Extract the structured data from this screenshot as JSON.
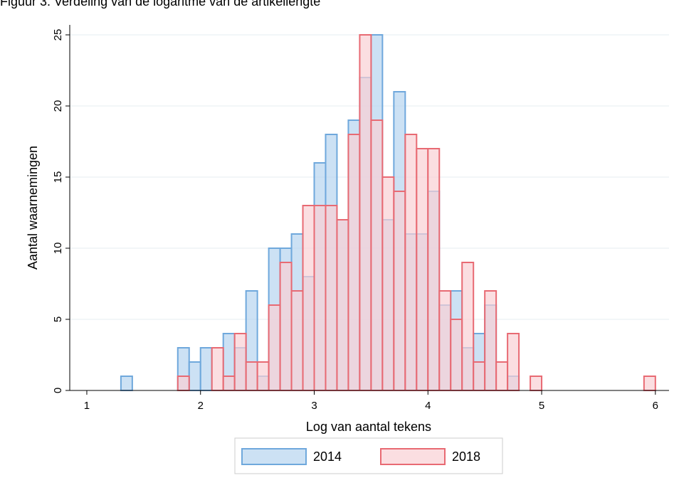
{
  "chart_data": {
    "type": "histogram",
    "title": "Figuur 3. Verdeling van de logaritme van de artikellengte",
    "x_label": "Log van aantal tekens",
    "y_label": "Aantal waarnemingen",
    "bins": [
      1.3,
      1.4,
      1.5,
      1.6,
      1.7,
      1.8,
      1.9,
      2.0,
      2.1,
      2.2,
      2.3,
      2.4,
      2.5,
      2.6,
      2.7,
      2.8,
      2.9,
      3.0,
      3.1,
      3.2,
      3.3,
      3.4,
      3.5,
      3.6,
      3.7,
      3.8,
      3.9,
      4.0,
      4.1,
      4.2,
      4.3,
      4.4,
      4.5,
      4.6,
      4.7,
      4.8,
      4.9,
      5.0,
      5.1,
      5.2,
      5.3,
      5.4,
      5.5,
      5.6,
      5.7,
      5.8,
      5.9,
      6.0
    ],
    "series": [
      {
        "name": "2014",
        "color": "#6fa8dc",
        "fill": "#b6d4ef",
        "values": [
          1,
          0,
          0,
          0,
          0,
          3,
          2,
          3,
          0,
          4,
          3,
          7,
          1,
          10,
          10,
          11,
          8,
          16,
          18,
          12,
          19,
          22,
          25,
          12,
          21,
          11,
          11,
          14,
          6,
          7,
          3,
          4,
          6,
          0,
          1,
          0,
          0,
          0,
          0,
          0,
          0,
          0,
          0,
          0,
          0,
          0,
          0
        ]
      },
      {
        "name": "2018",
        "color": "#e86a73",
        "fill": "#f9d0d4",
        "values": [
          0,
          0,
          0,
          0,
          0,
          1,
          0,
          0,
          3,
          1,
          4,
          2,
          2,
          6,
          9,
          7,
          13,
          13,
          13,
          12,
          18,
          25,
          19,
          15,
          14,
          18,
          17,
          17,
          7,
          5,
          9,
          2,
          7,
          2,
          4,
          0,
          1,
          0,
          0,
          0,
          0,
          0,
          0,
          0,
          0,
          0,
          1
        ]
      }
    ],
    "xlim": [
      0.85,
      6.12
    ],
    "ylim": [
      0,
      25.7
    ],
    "xticks": [
      1,
      2,
      3,
      4,
      5,
      6
    ],
    "yticks": [
      0,
      5,
      10,
      15,
      20,
      25
    ],
    "grid": true,
    "legend_position": "bottom"
  }
}
